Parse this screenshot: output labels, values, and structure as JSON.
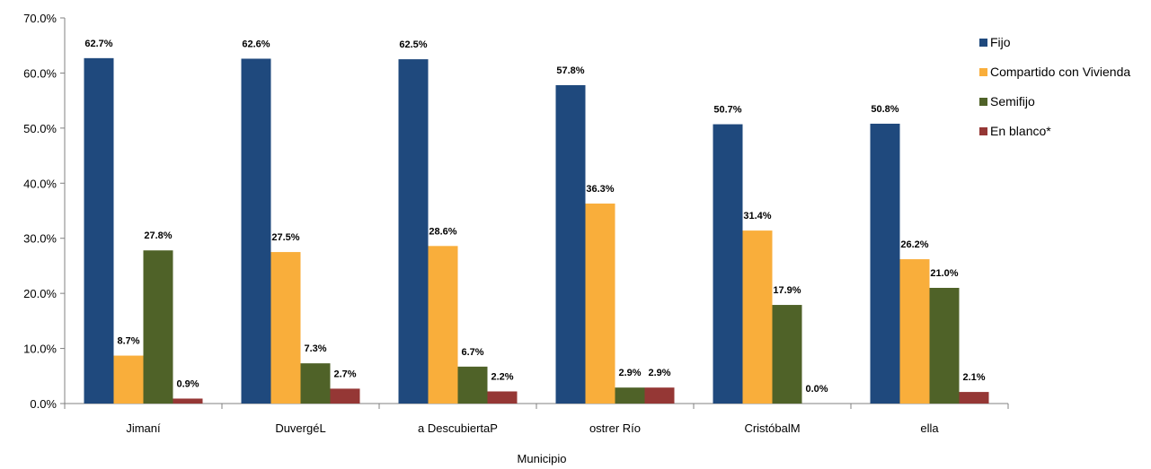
{
  "chart_data": {
    "type": "bar",
    "xlabel": "Municipio",
    "ylabel": "",
    "title": "",
    "ylim": [
      0,
      70
    ],
    "yticks": [
      "0.0%",
      "10.0%",
      "20.0%",
      "30.0%",
      "40.0%",
      "50.0%",
      "60.0%",
      "70.0%"
    ],
    "categories": [
      "Jimaní",
      "DuvergéL",
      "a DescubiertaP",
      "ostrer Río",
      "CristóbalM",
      "ella"
    ],
    "legend_position": "right",
    "grid": false,
    "series": [
      {
        "name": "Fijo",
        "color": "#1F497D",
        "values": [
          62.7,
          62.6,
          62.5,
          57.8,
          50.7,
          50.8
        ],
        "labels": [
          "62.7%",
          "62.6%",
          "62.5%",
          "57.8%",
          "50.7%",
          "50.8%"
        ]
      },
      {
        "name": "Compartido con Vivienda",
        "color": "#F9AE3B",
        "values": [
          8.7,
          27.5,
          28.6,
          36.3,
          31.4,
          26.2
        ],
        "labels": [
          "8.7%",
          "27.5%",
          "28.6%",
          "36.3%",
          "31.4%",
          "26.2%"
        ]
      },
      {
        "name": "Semifijo",
        "color": "#4F6228",
        "values": [
          27.8,
          7.3,
          6.7,
          2.9,
          17.9,
          21.0
        ],
        "labels": [
          "27.8%",
          "7.3%",
          "6.7%",
          "2.9%",
          "17.9%",
          "21.0%"
        ]
      },
      {
        "name": "En blanco*",
        "color": "#953735",
        "values": [
          0.9,
          2.7,
          2.2,
          2.9,
          0.0,
          2.1
        ],
        "labels": [
          "0.9%",
          "2.7%",
          "2.2%",
          "2.9%",
          "0.0%",
          "2.1%"
        ]
      }
    ]
  }
}
